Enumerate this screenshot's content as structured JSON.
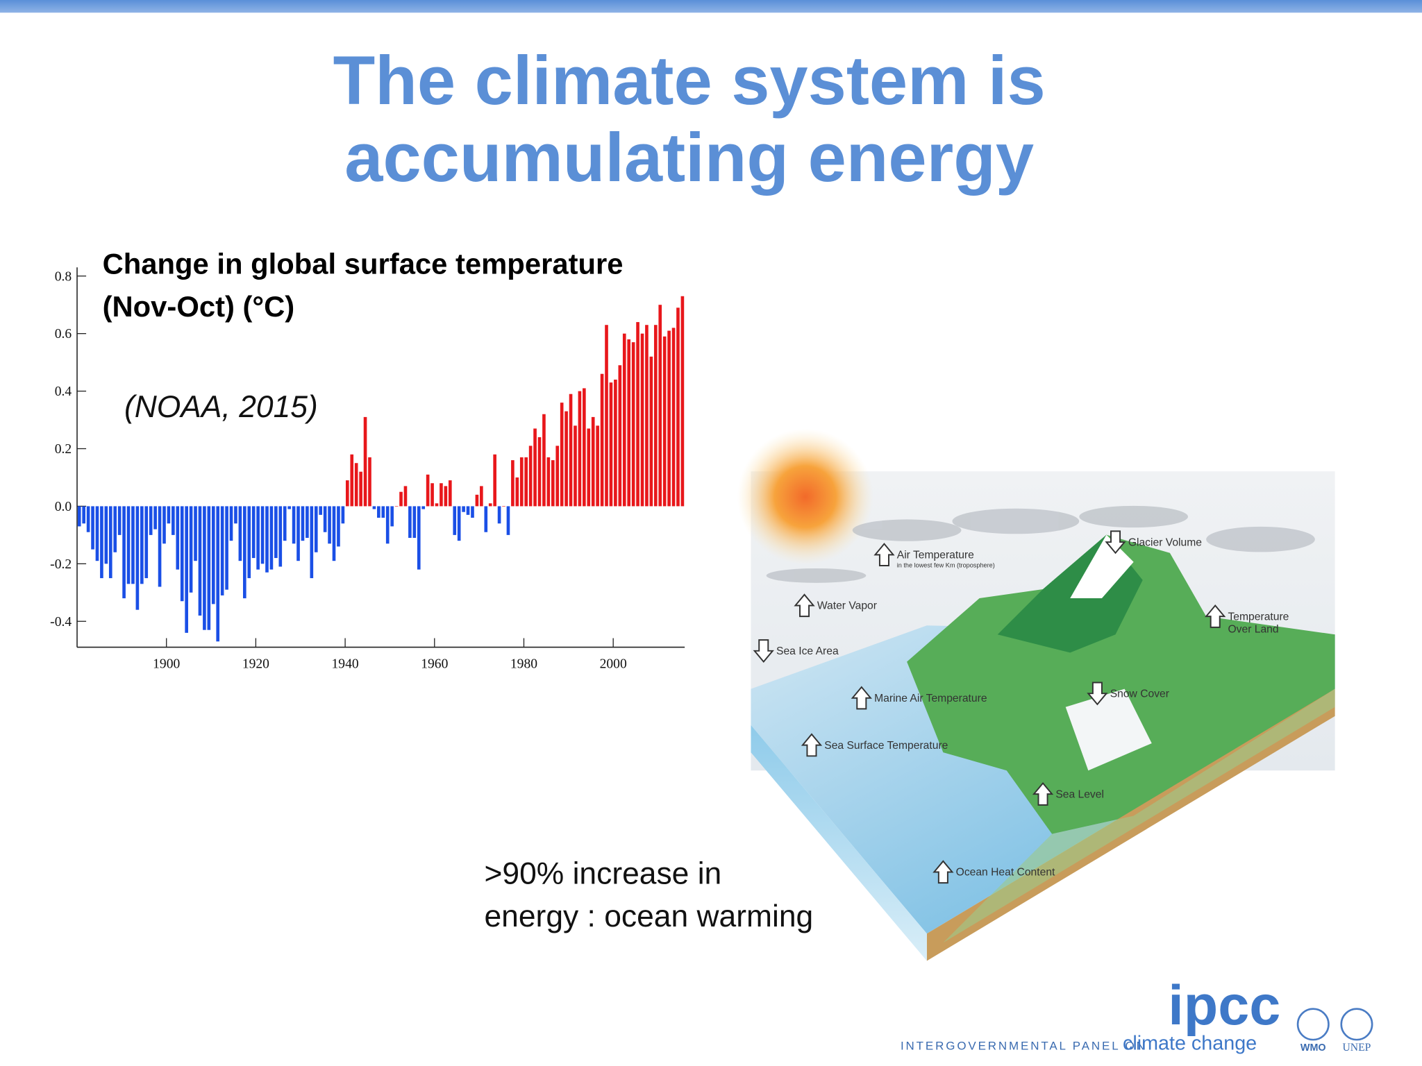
{
  "slide": {
    "title": [
      "The climate system is",
      "accumulating energy"
    ],
    "caption": [
      ">90% increase in",
      "energy : ocean warming"
    ],
    "footer": {
      "logo": "ipcc",
      "org": "INTERGOVERNMENTAL PANEL ON",
      "org_tail": "climate change",
      "partners": [
        "WMO",
        "UNEP"
      ]
    }
  },
  "diagram": {
    "labels": [
      {
        "lines": [
          "Air Temperature",
          "in the lowest few Km (troposphere)"
        ]
      },
      {
        "lines": [
          "Glacier Volume"
        ]
      },
      {
        "lines": [
          "Water Vapor"
        ]
      },
      {
        "lines": [
          "Temperature",
          "Over Land"
        ]
      },
      {
        "lines": [
          "Sea Ice Area"
        ]
      },
      {
        "lines": [
          "Marine Air Temperature"
        ]
      },
      {
        "lines": [
          "Snow Cover"
        ]
      },
      {
        "lines": [
          "Sea Surface Temperature"
        ]
      },
      {
        "lines": [
          "Sea Level"
        ]
      },
      {
        "lines": [
          "Ocean Heat Content"
        ]
      }
    ]
  },
  "chart_data": {
    "type": "bar",
    "title": [
      "Change in global surface temperature",
      "(Nov-Oct) (°C)"
    ],
    "annotation": "(NOAA, 2015)",
    "x": [
      1880,
      1881,
      1882,
      1883,
      1884,
      1885,
      1886,
      1887,
      1888,
      1889,
      1890,
      1891,
      1892,
      1893,
      1894,
      1895,
      1896,
      1897,
      1898,
      1899,
      1900,
      1901,
      1902,
      1903,
      1904,
      1905,
      1906,
      1907,
      1908,
      1909,
      1910,
      1911,
      1912,
      1913,
      1914,
      1915,
      1916,
      1917,
      1918,
      1919,
      1920,
      1921,
      1922,
      1923,
      1924,
      1925,
      1926,
      1927,
      1928,
      1929,
      1930,
      1931,
      1932,
      1933,
      1934,
      1935,
      1936,
      1937,
      1938,
      1939,
      1940,
      1941,
      1942,
      1943,
      1944,
      1945,
      1946,
      1947,
      1948,
      1949,
      1950,
      1951,
      1952,
      1953,
      1954,
      1955,
      1956,
      1957,
      1958,
      1959,
      1960,
      1961,
      1962,
      1963,
      1964,
      1965,
      1966,
      1967,
      1968,
      1969,
      1970,
      1971,
      1972,
      1973,
      1974,
      1975,
      1976,
      1977,
      1978,
      1979,
      1980,
      1981,
      1982,
      1983,
      1984,
      1985,
      1986,
      1987,
      1988,
      1989,
      1990,
      1991,
      1992,
      1993,
      1994,
      1995,
      1996,
      1997,
      1998,
      1999,
      2000,
      2001,
      2002,
      2003,
      2004,
      2005,
      2006,
      2007,
      2008,
      2009,
      2010,
      2011,
      2012,
      2013,
      2014,
      2015
    ],
    "values": [
      -0.07,
      -0.06,
      -0.09,
      -0.15,
      -0.19,
      -0.25,
      -0.2,
      -0.25,
      -0.16,
      -0.1,
      -0.32,
      -0.27,
      -0.27,
      -0.36,
      -0.27,
      -0.25,
      -0.1,
      -0.08,
      -0.28,
      -0.13,
      -0.06,
      -0.1,
      -0.22,
      -0.33,
      -0.44,
      -0.3,
      -0.19,
      -0.38,
      -0.43,
      -0.43,
      -0.34,
      -0.47,
      -0.31,
      -0.29,
      -0.12,
      -0.06,
      -0.19,
      -0.32,
      -0.25,
      -0.18,
      -0.22,
      -0.2,
      -0.23,
      -0.22,
      -0.18,
      -0.21,
      -0.12,
      -0.01,
      -0.13,
      -0.19,
      -0.12,
      -0.11,
      -0.25,
      -0.16,
      -0.03,
      -0.09,
      -0.13,
      -0.19,
      -0.14,
      -0.06,
      0.09,
      0.18,
      0.15,
      0.12,
      0.31,
      0.17,
      -0.01,
      -0.04,
      -0.04,
      -0.13,
      -0.07,
      0.0,
      0.05,
      0.07,
      -0.11,
      -0.11,
      -0.22,
      -0.01,
      0.11,
      0.08,
      0.01,
      0.08,
      0.07,
      0.09,
      -0.1,
      -0.12,
      -0.02,
      -0.03,
      -0.04,
      0.04,
      0.07,
      -0.09,
      0.01,
      0.18,
      -0.06,
      0.0,
      -0.1,
      0.16,
      0.1,
      0.17,
      0.17,
      0.21,
      0.27,
      0.24,
      0.32,
      0.17,
      0.16,
      0.21,
      0.36,
      0.33,
      0.39,
      0.28,
      0.4,
      0.41,
      0.27,
      0.31,
      0.28,
      0.46,
      0.63,
      0.43,
      0.44,
      0.49,
      0.6,
      0.58,
      0.57,
      0.64,
      0.6,
      0.63,
      0.52,
      0.63,
      0.7,
      0.59,
      0.61,
      0.62,
      0.69,
      0.73
    ],
    "positive_color": "#e8171b",
    "negative_color": "#1a4fe6",
    "xlim": [
      1880,
      2016
    ],
    "xticks": [
      1900,
      1920,
      1940,
      1960,
      1980,
      2000
    ],
    "ylim": [
      -0.49,
      0.83
    ],
    "yticks": [
      {
        "value": -0.4,
        "label": "-0.4"
      },
      {
        "value": -0.2,
        "label": "-0.2"
      },
      {
        "value": 0,
        "label": "0.0"
      },
      {
        "value": 0.2,
        "label": "0.2"
      },
      {
        "value": 0.4,
        "label": "0.4"
      },
      {
        "value": 0.6,
        "label": "0.6"
      },
      {
        "value": 0.8,
        "label": "0.8"
      }
    ],
    "grid": false
  }
}
